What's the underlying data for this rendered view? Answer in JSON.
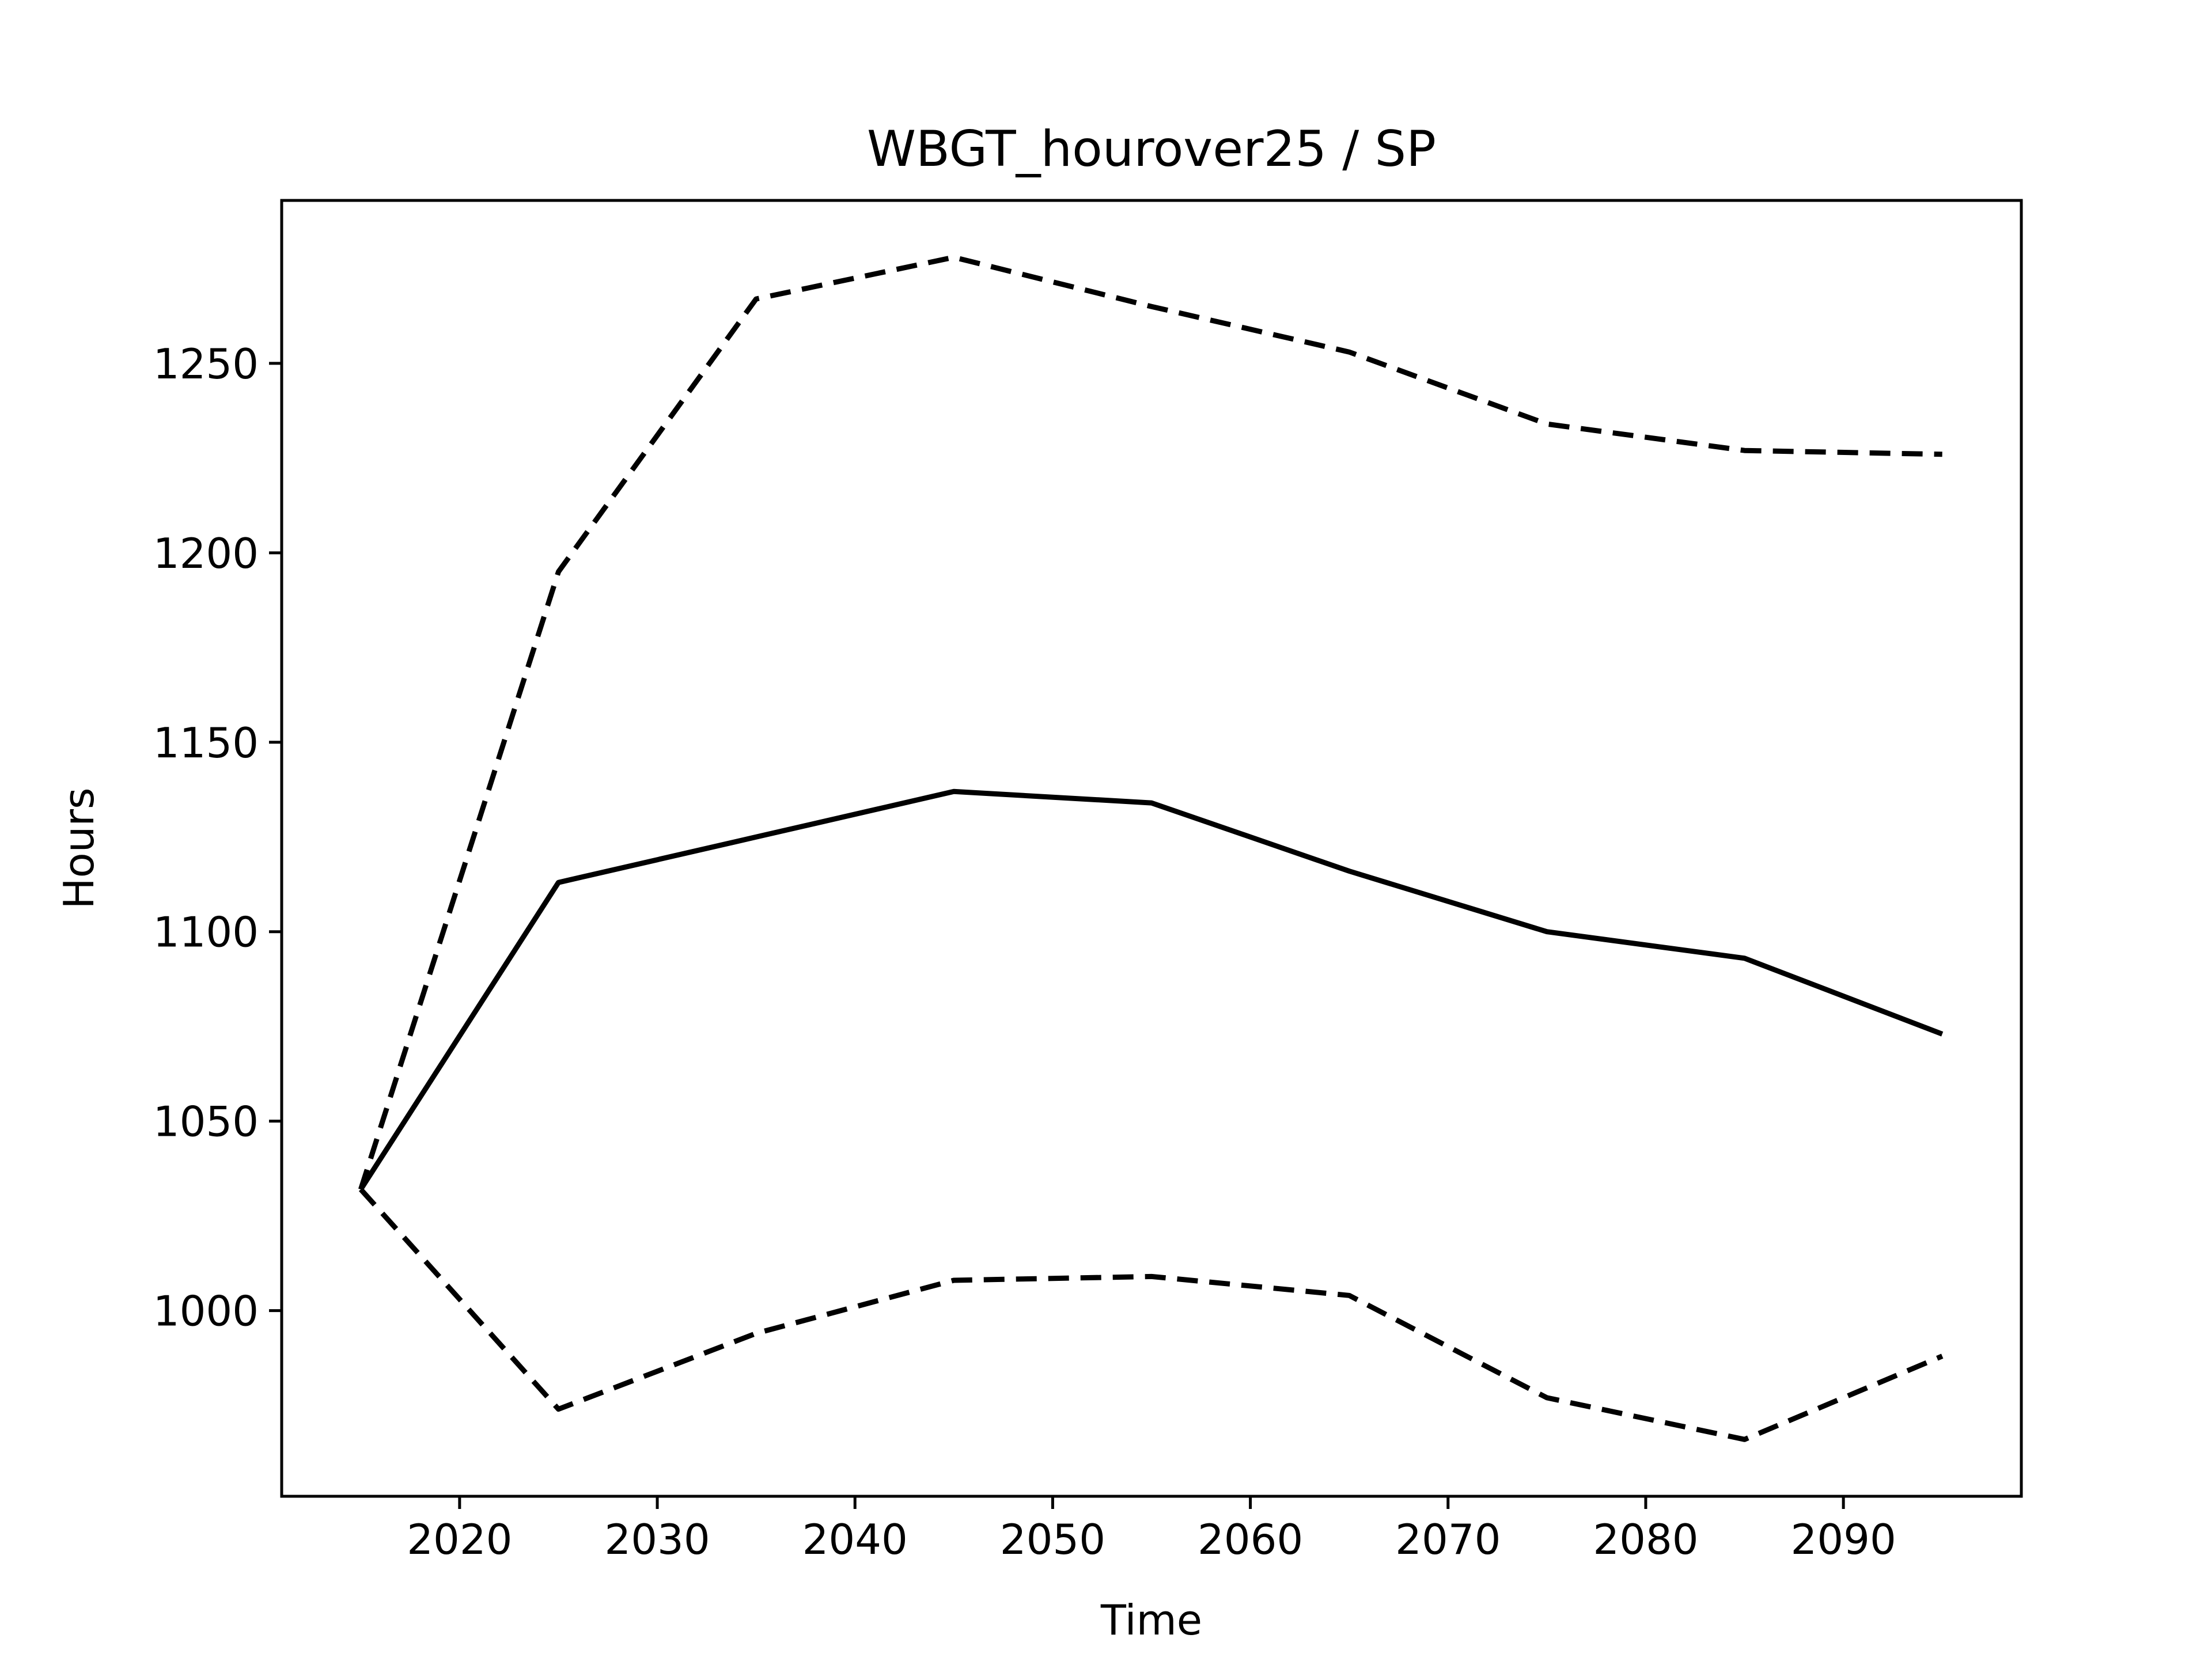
{
  "chart_data": {
    "type": "line",
    "title": "WBGT_hourover25 / SP",
    "xlabel": "Time",
    "ylabel": "Hours",
    "xlim": [
      2011,
      2099
    ],
    "ylim": [
      951,
      1293
    ],
    "x": [
      2015,
      2025,
      2035,
      2045,
      2055,
      2065,
      2075,
      2085,
      2095
    ],
    "xticks": [
      2020,
      2030,
      2040,
      2050,
      2060,
      2070,
      2080,
      2090
    ],
    "yticks": [
      1000,
      1050,
      1100,
      1150,
      1200,
      1250
    ],
    "grid": false,
    "series": [
      {
        "values": [
          1032,
          1195,
          1267,
          1278,
          1265,
          1253,
          1234,
          1227,
          1226
        ],
        "style": "dashed",
        "color": "#000000"
      },
      {
        "values": [
          1032,
          1113,
          1125,
          1137,
          1134,
          1116,
          1100,
          1093,
          1073
        ],
        "style": "solid",
        "color": "#000000"
      },
      {
        "values": [
          1032,
          974,
          994,
          1008,
          1009,
          1004,
          977,
          966,
          988
        ],
        "style": "dashed",
        "color": "#000000"
      }
    ]
  }
}
